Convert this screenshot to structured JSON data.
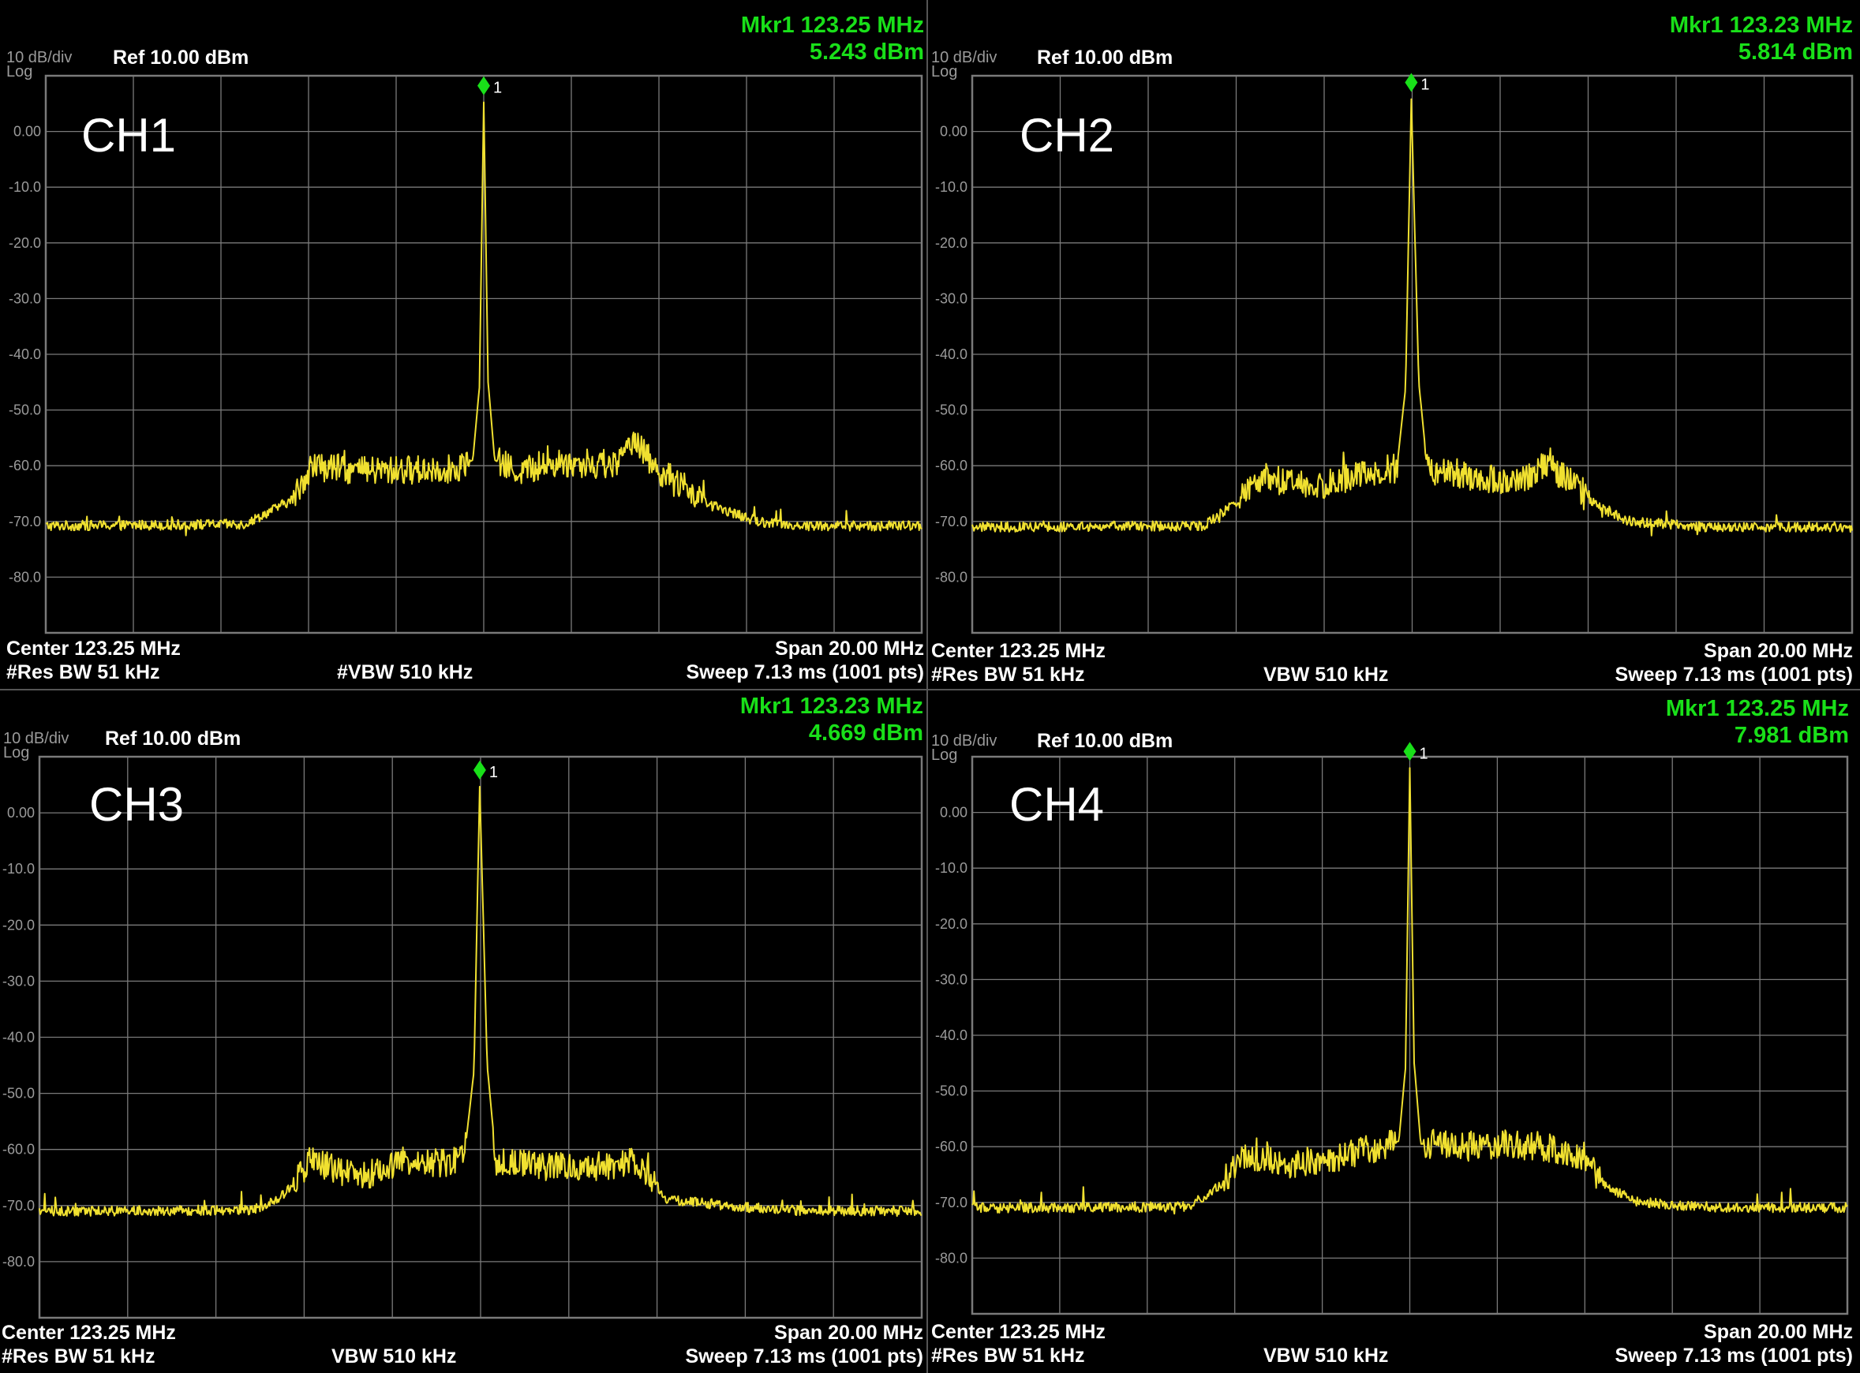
{
  "colors": {
    "trace": "#f0e030",
    "marker": "#19e019",
    "grid": "#7a7a7a",
    "background": "#000000"
  },
  "panels": [
    {
      "ch_label": "CH1",
      "scale": "10 dB/div",
      "scale_type": "Log",
      "ref": "Ref 10.00 dBm",
      "mkr_freq": "Mkr1 123.25 MHz",
      "mkr_amp": "5.243 dBm",
      "center": "Center 123.25 MHz",
      "res_bw": "#Res BW 51 kHz",
      "vbw": "#VBW 510 kHz",
      "span": "Span 20.00 MHz",
      "sweep": "Sweep  7.13 ms (1001 pts)"
    },
    {
      "ch_label": "CH2",
      "scale": "10 dB/div",
      "scale_type": "Log",
      "ref": "Ref 10.00 dBm",
      "mkr_freq": "Mkr1 123.23 MHz",
      "mkr_amp": "5.814 dBm",
      "center": "Center 123.25 MHz",
      "res_bw": "#Res BW 51 kHz",
      "vbw": "VBW 510 kHz",
      "span": "Span 20.00 MHz",
      "sweep": "Sweep  7.13 ms (1001 pts)"
    },
    {
      "ch_label": "CH3",
      "scale": "10 dB/div",
      "scale_type": "Log",
      "ref": "Ref 10.00 dBm",
      "mkr_freq": "Mkr1 123.23 MHz",
      "mkr_amp": "4.669 dBm",
      "center": "Center 123.25 MHz",
      "res_bw": "#Res BW 51 kHz",
      "vbw": "VBW 510 kHz",
      "span": "Span 20.00 MHz",
      "sweep": "Sweep  7.13 ms (1001 pts)"
    },
    {
      "ch_label": "CH4",
      "scale": "10 dB/div",
      "scale_type": "Log",
      "ref": "Ref 10.00 dBm",
      "mkr_freq": "Mkr1 123.25 MHz",
      "mkr_amp": "7.981 dBm",
      "center": "Center 123.25 MHz",
      "res_bw": "#Res BW 51 kHz",
      "vbw": "VBW 510 kHz",
      "span": "Span 20.00 MHz",
      "sweep": "Sweep  7.13 ms (1001 pts)"
    }
  ],
  "chart_data": [
    {
      "type": "line",
      "title": "CH1",
      "x_unit": "MHz",
      "y_unit": "dBm",
      "xlim": [
        113.25,
        133.25
      ],
      "ylim": [
        -90,
        10
      ],
      "y_ticks": [
        "0.00",
        "-10.0",
        "-20.0",
        "-30.0",
        "-40.0",
        "-50.0",
        "-60.0",
        "-70.0",
        "-80.0"
      ],
      "grid": true,
      "marker": {
        "label": "1",
        "x": 123.25,
        "y": 5.243
      },
      "series": [
        {
          "x": [
            113.25,
            117.8,
            118.9,
            119.3,
            120.5,
            122.6,
            123.0,
            123.15,
            123.25,
            123.35,
            123.5,
            124.0,
            125.0,
            126.3,
            126.7,
            127.1,
            128.4,
            129.5,
            130.5,
            133.25
          ],
          "y": [
            -70.8,
            -70.5,
            -66,
            -60,
            -61,
            -60.5,
            -59,
            -46,
            5.243,
            -45,
            -59,
            -61,
            -59.5,
            -60,
            -54.5,
            -60,
            -67,
            -70,
            -70.8,
            -70.8
          ]
        }
      ]
    },
    {
      "type": "line",
      "title": "CH2",
      "x_unit": "MHz",
      "y_unit": "dBm",
      "xlim": [
        113.25,
        133.25
      ],
      "ylim": [
        -90,
        10
      ],
      "y_ticks": [
        "0.00",
        "-10.0",
        "-20.0",
        "-30.0",
        "-40.0",
        "-50.0",
        "-60.0",
        "-70.0",
        "-80.0"
      ],
      "grid": true,
      "marker": {
        "label": "1",
        "x": 123.23,
        "y": 5.814
      },
      "series": [
        {
          "x": [
            113.25,
            118.5,
            119.2,
            119.8,
            121.0,
            122.3,
            122.9,
            123.1,
            123.23,
            123.4,
            123.6,
            124.5,
            125.6,
            126.3,
            127.0,
            127.4,
            128.2,
            130.0,
            133.25
          ],
          "y": [
            -71,
            -70.8,
            -67,
            -62,
            -64,
            -61,
            -60.5,
            -46,
            5.814,
            -45,
            -61,
            -62,
            -63,
            -60,
            -63.5,
            -67,
            -70,
            -71,
            -71
          ]
        }
      ]
    },
    {
      "type": "line",
      "title": "CH3",
      "x_unit": "MHz",
      "y_unit": "dBm",
      "xlim": [
        113.25,
        133.25
      ],
      "ylim": [
        -90,
        10
      ],
      "y_ticks": [
        "0.00",
        "-10.0",
        "-20.0",
        "-30.0",
        "-40.0",
        "-50.0",
        "-60.0",
        "-70.0",
        "-80.0"
      ],
      "grid": true,
      "marker": {
        "label": "1",
        "x": 123.23,
        "y": 4.669
      },
      "series": [
        {
          "x": [
            113.25,
            118.1,
            118.8,
            119.4,
            120.5,
            121.5,
            122.6,
            122.9,
            123.1,
            123.23,
            123.4,
            123.6,
            124.8,
            126.0,
            126.8,
            127.5,
            130.0,
            133.25
          ],
          "y": [
            -71,
            -70.8,
            -68,
            -62,
            -65,
            -62,
            -62.5,
            -60,
            -46,
            4.669,
            -45,
            -62,
            -63,
            -63,
            -62,
            -69,
            -70.8,
            -71
          ]
        }
      ]
    },
    {
      "type": "line",
      "title": "CH4",
      "x_unit": "MHz",
      "y_unit": "dBm",
      "xlim": [
        113.25,
        133.25
      ],
      "ylim": [
        -90,
        10
      ],
      "y_ticks": [
        "0.00",
        "-10.0",
        "-20.0",
        "-30.0",
        "-40.0",
        "-50.0",
        "-60.0",
        "-70.0",
        "-80.0"
      ],
      "grid": true,
      "marker": {
        "label": "1",
        "x": 123.25,
        "y": 7.981
      },
      "series": [
        {
          "x": [
            113.25,
            118.2,
            118.9,
            119.5,
            120.5,
            121.5,
            122.6,
            123.0,
            123.15,
            123.25,
            123.35,
            123.5,
            124.5,
            125.5,
            126.3,
            127.2,
            127.7,
            128.5,
            130.0,
            133.25
          ],
          "y": [
            -71,
            -70.8,
            -67,
            -61.5,
            -63,
            -62,
            -60,
            -59,
            -46,
            7.981,
            -45,
            -59.5,
            -60,
            -59.5,
            -60,
            -61.5,
            -67,
            -70,
            -70.8,
            -71
          ]
        }
      ]
    }
  ]
}
